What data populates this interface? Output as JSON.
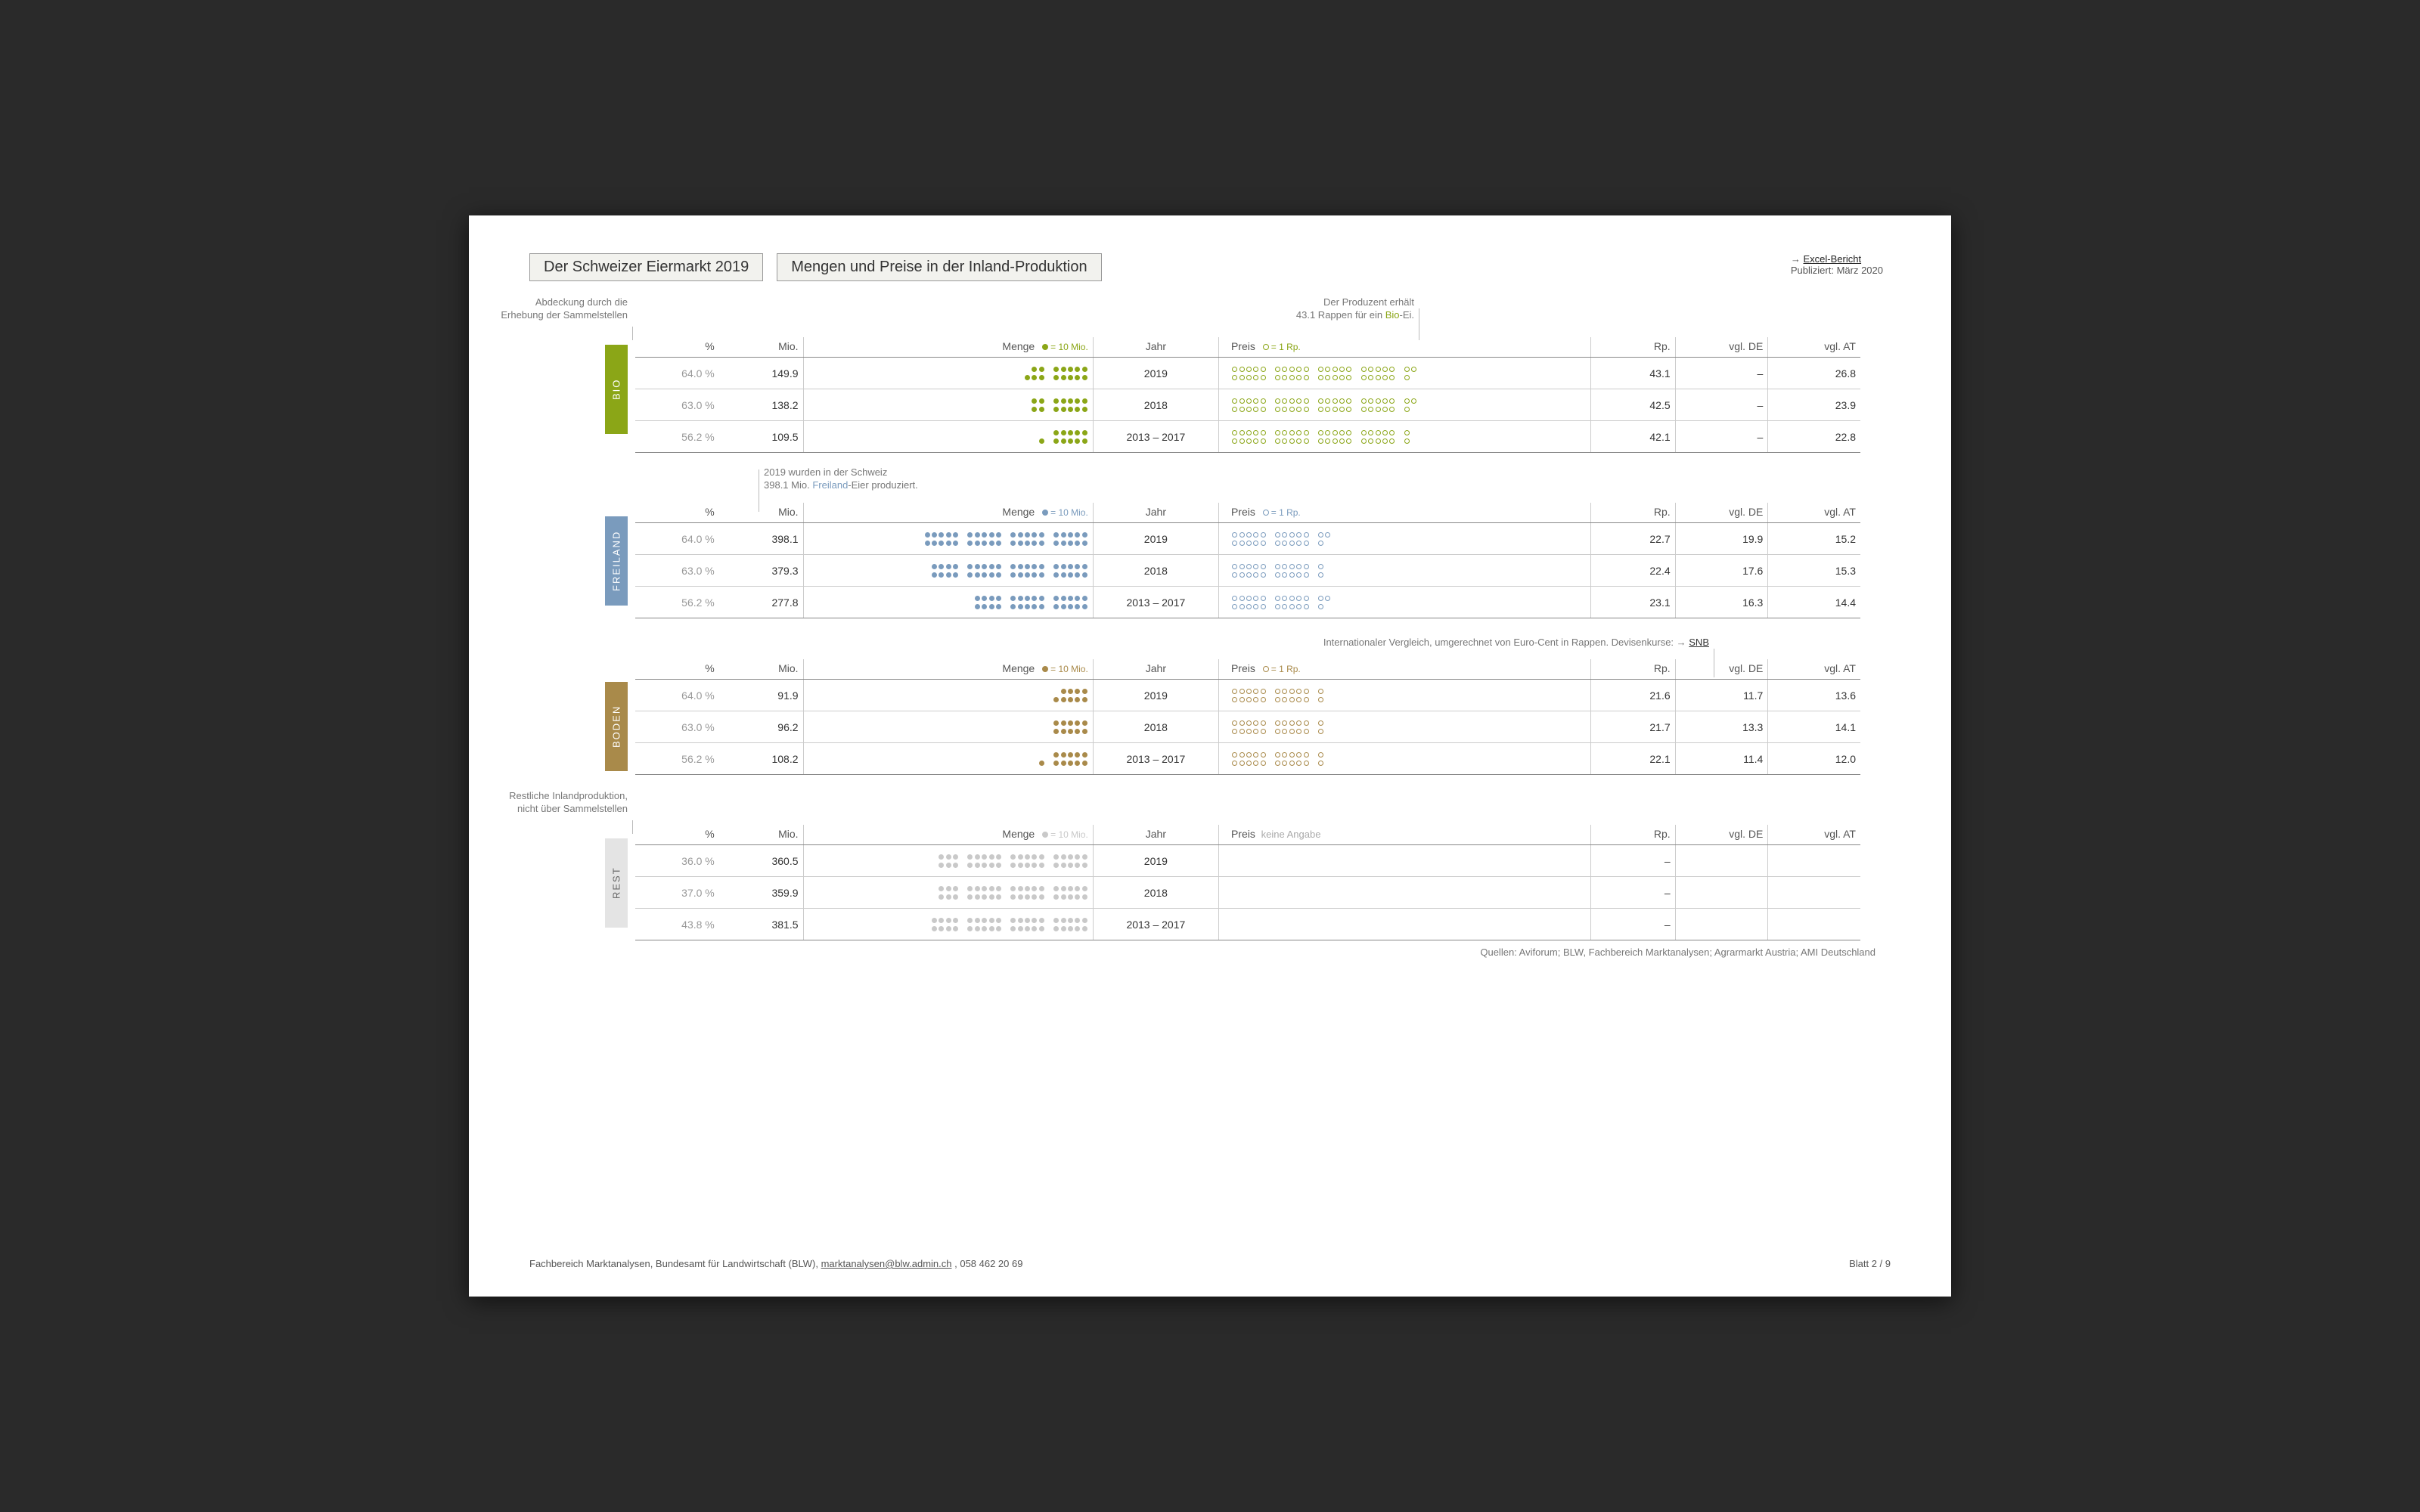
{
  "header": {
    "title1": "Der Schweizer Eiermarkt 2019",
    "title2": "Mengen und Preise in der Inland-Produktion",
    "excel_link": "Excel-Bericht",
    "published": "Publiziert: März 2020"
  },
  "columns": {
    "pct": "%",
    "mio": "Mio.",
    "menge": "Menge",
    "menge_legend": "= 10 Mio.",
    "jahr": "Jahr",
    "preis": "Preis",
    "preis_legend": "= 1 Rp.",
    "rp": "Rp.",
    "de": "vgl. DE",
    "at": "vgl. AT"
  },
  "colors": {
    "bio": "#8ba617",
    "freiland": "#7a9bbd",
    "boden": "#a98a4a",
    "rest": "#c9c9c9",
    "rest_vlabel_bg": "#e4e4e4",
    "rest_vlabel_text": "#666"
  },
  "annotations": {
    "a1": "Abdeckung durch die\nErhebung der Sammelstellen",
    "a2_pre": "Der Produzent erhält\n43.1 Rappen für ein ",
    "a2_hl": "Bio",
    "a2_post": "-Ei.",
    "a3_pre": "2019 wurden in der Schweiz\n398.1 Mio. ",
    "a3_hl": "Freiland",
    "a3_post": "-Eier produziert.",
    "a4_pre": "Internationaler Vergleich, umgerechnet von Euro-Cent in Rappen. Devisenkurse: → ",
    "a4_link": "SNB",
    "a5": "Restliche Inlandproduktion,\nnicht über Sammelstellen"
  },
  "sections": [
    {
      "key": "bio",
      "label": "BIO",
      "rows": [
        {
          "pct": "64.0 %",
          "mio": "149.9",
          "menge": 15,
          "jahr": "2019",
          "preis": 43,
          "rp": "43.1",
          "de": "–",
          "at": "26.8"
        },
        {
          "pct": "63.0 %",
          "mio": "138.2",
          "menge": 14,
          "jahr": "2018",
          "preis": 43,
          "rp": "42.5",
          "de": "–",
          "at": "23.9"
        },
        {
          "pct": "56.2 %",
          "mio": "109.5",
          "menge": 11,
          "jahr": "2013 – 2017",
          "preis": 42,
          "rp": "42.1",
          "de": "–",
          "at": "22.8"
        }
      ]
    },
    {
      "key": "freiland",
      "label": "FREILAND",
      "rows": [
        {
          "pct": "64.0 %",
          "mio": "398.1",
          "menge": 40,
          "jahr": "2019",
          "preis": 23,
          "rp": "22.7",
          "de": "19.9",
          "at": "15.2"
        },
        {
          "pct": "63.0 %",
          "mio": "379.3",
          "menge": 38,
          "jahr": "2018",
          "preis": 22,
          "rp": "22.4",
          "de": "17.6",
          "at": "15.3"
        },
        {
          "pct": "56.2 %",
          "mio": "277.8",
          "menge": 28,
          "jahr": "2013 – 2017",
          "preis": 23,
          "rp": "23.1",
          "de": "16.3",
          "at": "14.4"
        }
      ]
    },
    {
      "key": "boden",
      "label": "BODEN",
      "rows": [
        {
          "pct": "64.0 %",
          "mio": "91.9",
          "menge": 9,
          "jahr": "2019",
          "preis": 22,
          "rp": "21.6",
          "de": "11.7",
          "at": "13.6"
        },
        {
          "pct": "63.0 %",
          "mio": "96.2",
          "menge": 10,
          "jahr": "2018",
          "preis": 22,
          "rp": "21.7",
          "de": "13.3",
          "at": "14.1"
        },
        {
          "pct": "56.2 %",
          "mio": "108.2",
          "menge": 11,
          "jahr": "2013 – 2017",
          "preis": 22,
          "rp": "22.1",
          "de": "11.4",
          "at": "12.0"
        }
      ]
    },
    {
      "key": "rest",
      "label": "REST",
      "no_price_label": "keine Angabe",
      "rows": [
        {
          "pct": "36.0 %",
          "mio": "360.5",
          "menge": 36,
          "jahr": "2019",
          "preis": 0,
          "rp": "–",
          "de": "",
          "at": ""
        },
        {
          "pct": "37.0 %",
          "mio": "359.9",
          "menge": 36,
          "jahr": "2018",
          "preis": 0,
          "rp": "–",
          "de": "",
          "at": ""
        },
        {
          "pct": "43.8 %",
          "mio": "381.5",
          "menge": 38,
          "jahr": "2013 – 2017",
          "preis": 0,
          "rp": "–",
          "de": "",
          "at": ""
        }
      ]
    }
  ],
  "sources": "Quellen: Aviforum; BLW, Fachbereich Marktanalysen; Agrarmarkt Austria; AMI Deutschland",
  "footer": {
    "left_pre": "Fachbereich Marktanalysen, Bundesamt für Landwirtschaft (BLW), ",
    "email": "marktanalysen@blw.admin.ch",
    "left_post": ", 058 462 20 69",
    "right": "Blatt 2 / 9"
  }
}
